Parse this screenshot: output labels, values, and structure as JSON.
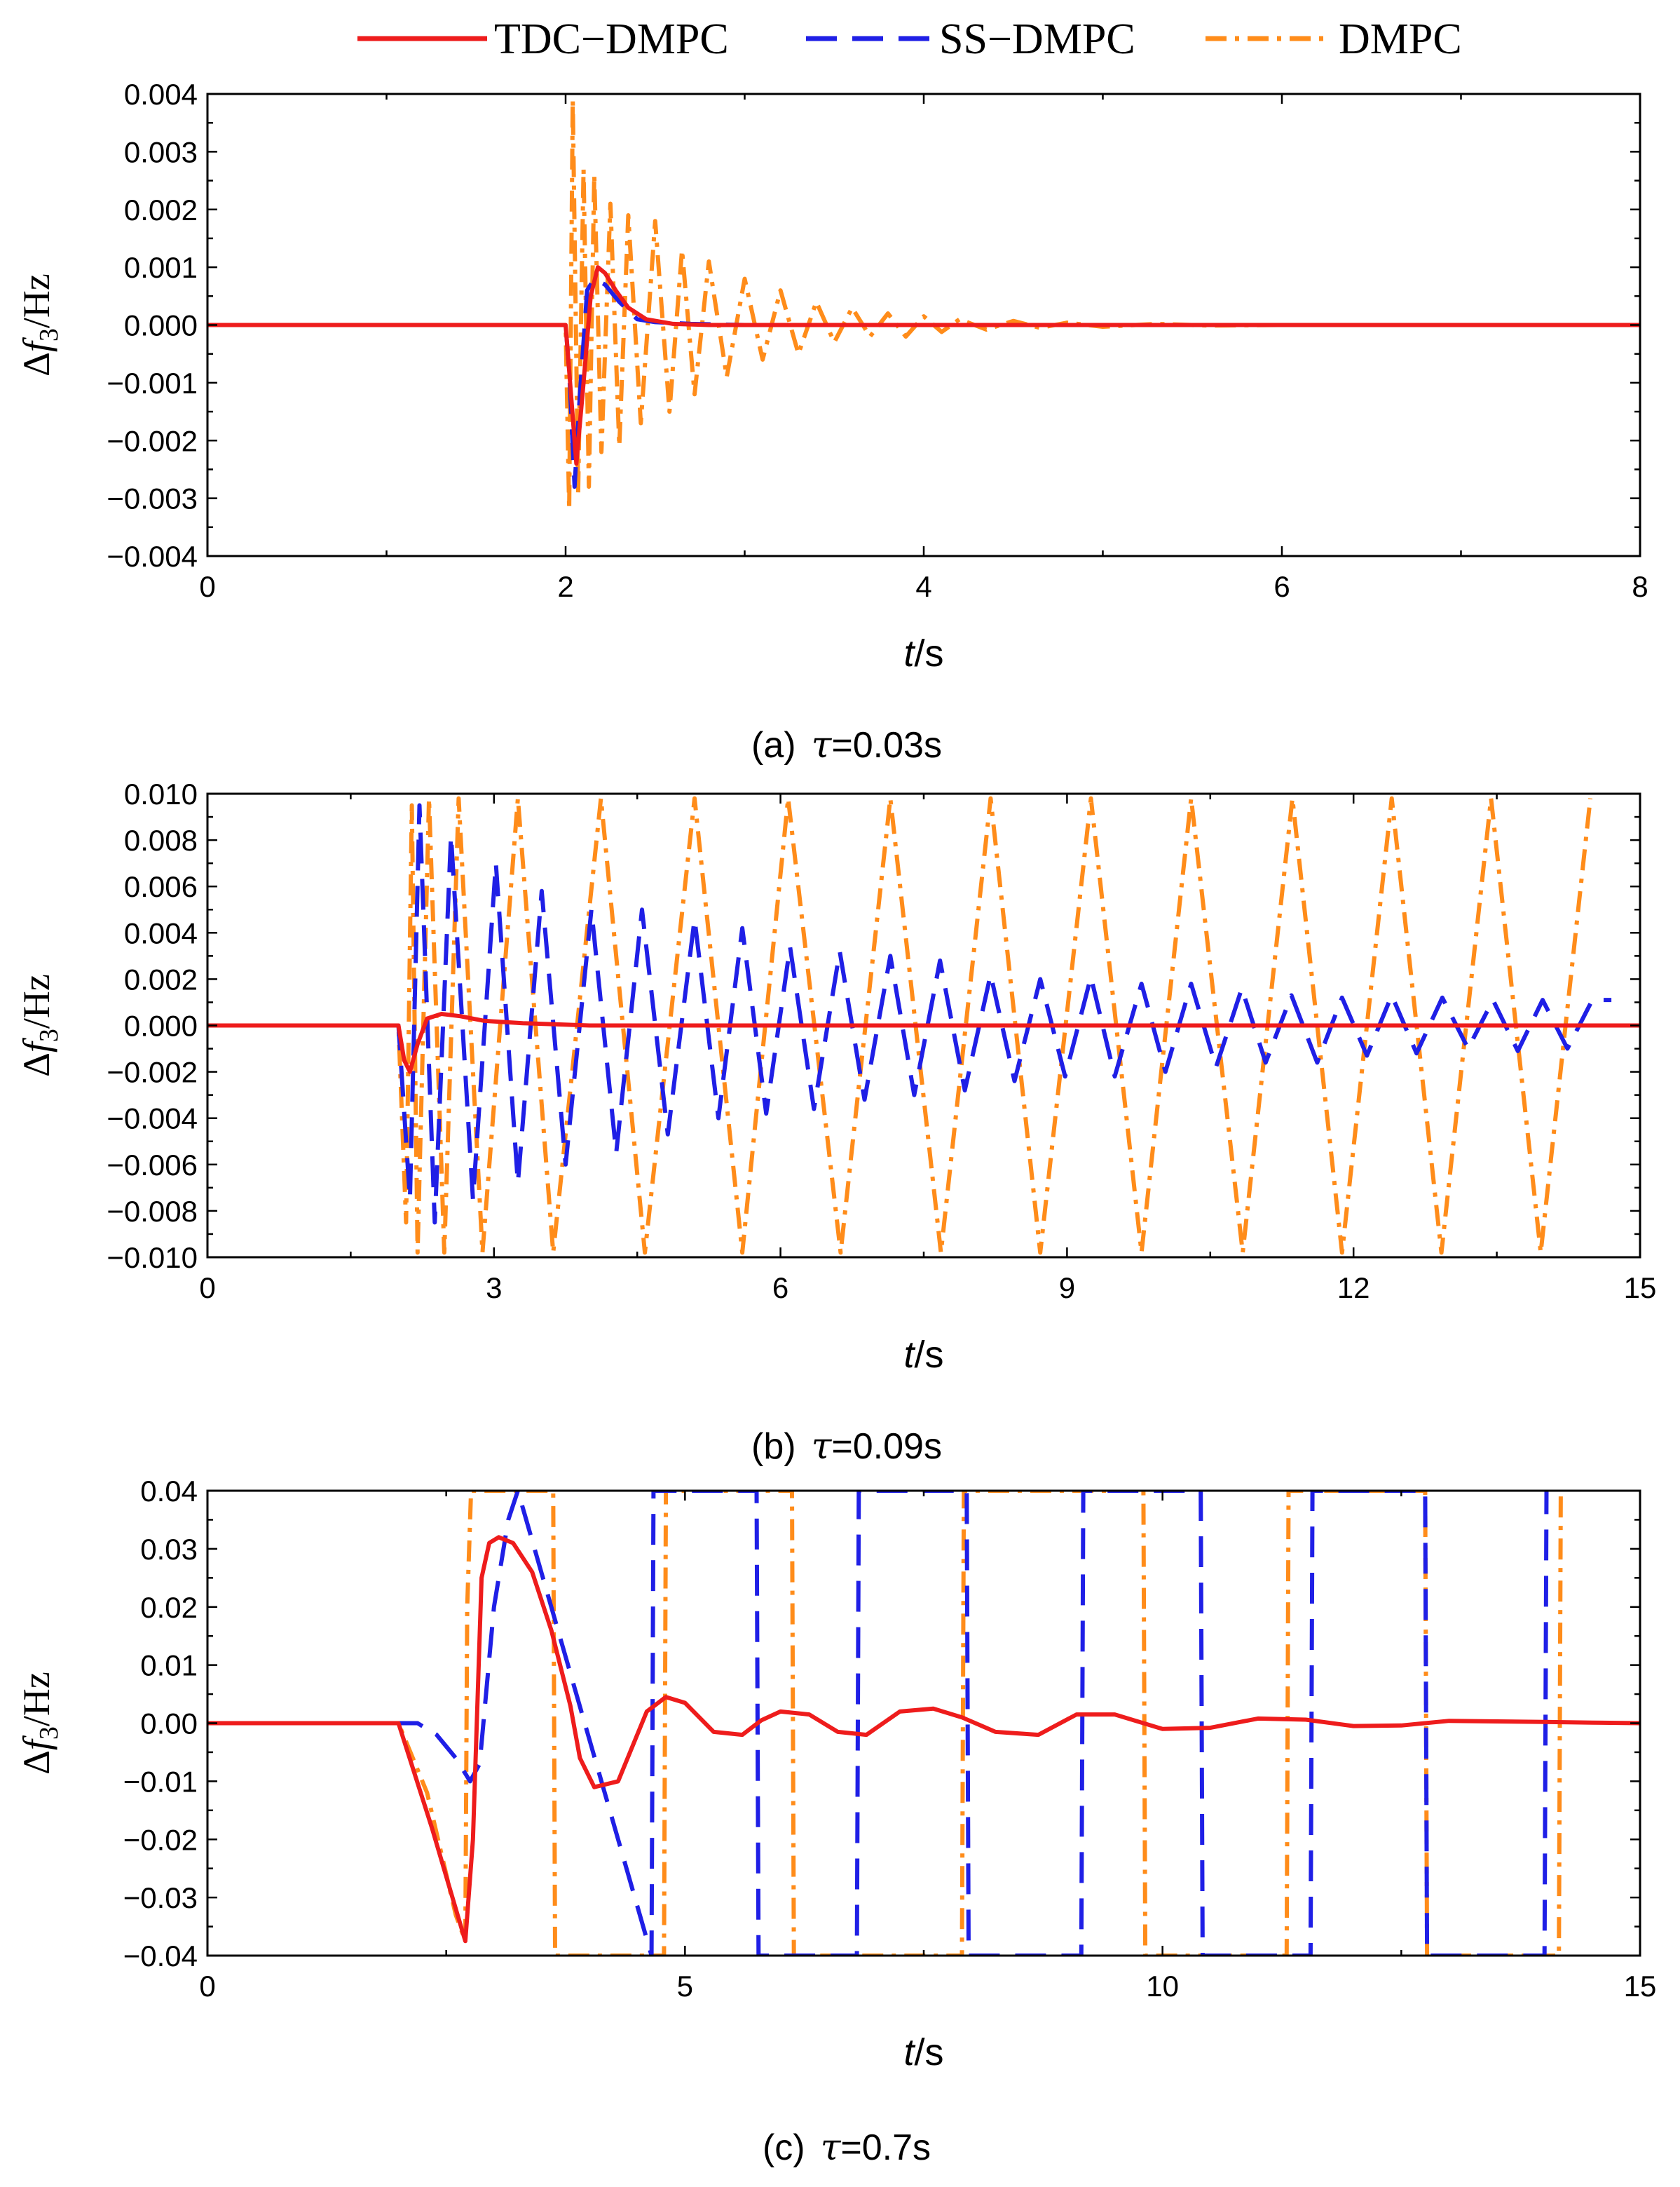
{
  "legend": [
    {
      "label": "TDC−DMPC",
      "color": "#ee1c1c",
      "style": "solid"
    },
    {
      "label": "SS−DMPC",
      "color": "#1f1fe6",
      "style": "dashed"
    },
    {
      "label": "DMPC",
      "color": "#ff8c1a",
      "style": "dashdot"
    }
  ],
  "chart_data": [
    {
      "type": "line",
      "panel": "a",
      "caption": {
        "prefix": "(a)",
        "symbol": "τ",
        "value": "=0.03s"
      },
      "xlabel": {
        "var": "t",
        "unit": "/s"
      },
      "ylabel": {
        "delta": "Δ",
        "var": "f",
        "sub": "3",
        "unit": "/Hz"
      },
      "xlim": [
        0,
        8
      ],
      "ylim": [
        -0.004,
        0.004
      ],
      "xticks": [
        0,
        2,
        4,
        6,
        8
      ],
      "xtick_labels": [
        "0",
        "2",
        "4",
        "6",
        "8"
      ],
      "yticks": [
        -0.004,
        -0.003,
        -0.002,
        -0.001,
        0.0,
        0.001,
        0.002,
        0.003,
        0.004
      ],
      "ytick_labels": [
        "−0.004",
        "−0.003",
        "−0.002",
        "−0.001",
        "0.000",
        "0.001",
        "0.002",
        "0.003",
        "0.004"
      ],
      "series": [
        {
          "name": "DMPC",
          "t": [
            0,
            2.0,
            2.02,
            2.04,
            2.07,
            2.1,
            2.13,
            2.16,
            2.2,
            2.25,
            2.3,
            2.35,
            2.42,
            2.5,
            2.58,
            2.65,
            2.72,
            2.8,
            2.9,
            3.0,
            3.1,
            3.2,
            3.3,
            3.4,
            3.5,
            3.6,
            3.7,
            3.8,
            3.9,
            4.0,
            4.1,
            4.2,
            4.35,
            4.5,
            4.65,
            4.8,
            5.0,
            5.3,
            5.6,
            6.0,
            8.0
          ],
          "values": [
            0,
            0,
            -0.0032,
            0.0039,
            -0.0029,
            0.0027,
            -0.0028,
            0.0026,
            -0.0022,
            0.0021,
            -0.0021,
            0.0019,
            -0.0017,
            0.0018,
            -0.0015,
            0.0013,
            -0.0012,
            0.0011,
            -0.0009,
            0.0008,
            -0.0006,
            0.0006,
            -0.0005,
            0.0004,
            -0.0003,
            0.0003,
            -0.0002,
            0.0002,
            -0.0002,
            0.00015,
            -0.00012,
            0.0001,
            -8e-05,
            7e-05,
            -5e-05,
            4e-05,
            -3e-05,
            2e-05,
            -1e-05,
            0,
            0
          ]
        },
        {
          "name": "SS−DMPC",
          "t": [
            0,
            2.0,
            2.02,
            2.05,
            2.08,
            2.12,
            2.16,
            2.22,
            2.3,
            2.4,
            2.5,
            2.7,
            3.0,
            8.0
          ],
          "values": [
            0,
            0,
            -0.0008,
            -0.0028,
            -0.0012,
            0.0006,
            0.0008,
            0.0007,
            0.0004,
            0.0001,
            5e-05,
            2e-05,
            0,
            0
          ]
        },
        {
          "name": "TDC−DMPC",
          "t": [
            0,
            2.0,
            2.03,
            2.06,
            2.1,
            2.14,
            2.18,
            2.22,
            2.28,
            2.35,
            2.45,
            2.6,
            2.8,
            3.0,
            8.0
          ],
          "values": [
            0,
            0,
            -0.0012,
            -0.0024,
            -0.001,
            0.0005,
            0.001,
            0.0009,
            0.0006,
            0.0003,
            0.0001,
            2e-05,
            0,
            0,
            0
          ]
        }
      ]
    },
    {
      "type": "line",
      "panel": "b",
      "caption": {
        "prefix": "(b)",
        "symbol": "τ",
        "value": "=0.09s"
      },
      "xlabel": {
        "var": "t",
        "unit": "/s"
      },
      "ylabel": {
        "delta": "Δ",
        "var": "f",
        "sub": "3",
        "unit": "/Hz"
      },
      "xlim": [
        0,
        15
      ],
      "ylim": [
        -0.01,
        0.01
      ],
      "xticks": [
        0,
        3,
        6,
        9,
        12,
        15
      ],
      "xtick_labels": [
        "0",
        "3",
        "6",
        "9",
        "12",
        "15"
      ],
      "yticks": [
        -0.01,
        -0.008,
        -0.006,
        -0.004,
        -0.002,
        0.0,
        0.002,
        0.004,
        0.006,
        0.008,
        0.01
      ],
      "ytick_labels": [
        "−0.010",
        "−0.008",
        "−0.006",
        "−0.004",
        "−0.002",
        "0.000",
        "0.002",
        "0.004",
        "0.006",
        "0.008",
        "0.010"
      ],
      "series": [
        {
          "name": "DMPC",
          "t": [
            0,
            2.0,
            2.08,
            2.14,
            2.2,
            2.32,
            2.48,
            2.63,
            2.88,
            3.25,
            3.62,
            4.12,
            4.58,
            5.1,
            5.6,
            6.08,
            6.63,
            7.15,
            7.68,
            8.2,
            8.72,
            9.25,
            9.78,
            10.3,
            10.84,
            11.36,
            11.88,
            12.4,
            12.92,
            13.44,
            13.96,
            14.48
          ],
          "values": [
            0,
            0,
            -0.0085,
            0.0095,
            -0.0098,
            0.0098,
            -0.0098,
            0.0098,
            -0.0098,
            0.0098,
            -0.0098,
            0.0098,
            -0.0098,
            0.0098,
            -0.0098,
            0.0098,
            -0.0098,
            0.0098,
            -0.0098,
            0.0098,
            -0.0098,
            0.0098,
            -0.0098,
            0.0098,
            -0.0098,
            0.0098,
            -0.0098,
            0.0098,
            -0.0098,
            0.0098,
            -0.0098,
            0.0098
          ]
        },
        {
          "name": "SS−DMPC",
          "t": [
            0,
            2.0,
            2.12,
            2.22,
            2.38,
            2.55,
            2.78,
            3.02,
            3.25,
            3.5,
            3.75,
            4.02,
            4.28,
            4.55,
            4.82,
            5.1,
            5.35,
            5.6,
            5.85,
            6.1,
            6.35,
            6.62,
            6.88,
            7.15,
            7.4,
            7.67,
            7.93,
            8.2,
            8.45,
            8.72,
            8.98,
            9.25,
            9.5,
            9.78,
            10.03,
            10.3,
            10.56,
            10.83,
            11.08,
            11.35,
            11.62,
            11.88,
            12.14,
            12.4,
            12.66,
            12.93,
            13.2,
            13.46,
            13.72,
            13.98,
            14.24,
            14.5,
            14.7
          ],
          "values": [
            0,
            0,
            -0.0075,
            0.0095,
            -0.0085,
            0.0082,
            -0.0075,
            0.007,
            -0.0068,
            0.0058,
            -0.006,
            0.005,
            -0.0055,
            0.005,
            -0.0047,
            0.0046,
            -0.004,
            0.0042,
            -0.0038,
            0.0034,
            -0.0036,
            0.0032,
            -0.0032,
            0.003,
            -0.003,
            0.0028,
            -0.0028,
            0.0022,
            -0.0024,
            0.002,
            -0.0022,
            0.0021,
            -0.0022,
            0.0018,
            -0.002,
            0.0018,
            -0.0018,
            0.0016,
            -0.0016,
            0.0013,
            -0.0016,
            0.0012,
            -0.0013,
            0.0013,
            -0.0012,
            0.0012,
            -0.001,
            0.0011,
            -0.0011,
            0.0011,
            -0.001,
            0.0011,
            0.0011
          ]
        },
        {
          "name": "TDC−DMPC",
          "t": [
            0,
            2.0,
            2.06,
            2.12,
            2.2,
            2.3,
            2.45,
            2.65,
            2.9,
            3.3,
            4.0,
            15.0
          ],
          "values": [
            0,
            0,
            -0.0015,
            -0.002,
            -0.0008,
            0.0003,
            0.0005,
            0.0004,
            0.0002,
            0.0001,
            0,
            0
          ]
        }
      ]
    },
    {
      "type": "line",
      "panel": "c",
      "caption": {
        "prefix": "(c)",
        "symbol": "τ",
        "value": "=0.7s"
      },
      "xlabel": {
        "var": "t",
        "unit": "/s"
      },
      "ylabel": {
        "delta": "Δ",
        "var": "f",
        "sub": "3",
        "unit": "/Hz"
      },
      "xlim": [
        0,
        15
      ],
      "ylim": [
        -0.04,
        0.04
      ],
      "xticks": [
        0,
        5,
        10,
        15
      ],
      "xtick_labels": [
        "0",
        "5",
        "10",
        "15"
      ],
      "yticks": [
        -0.04,
        -0.03,
        -0.02,
        -0.01,
        0.0,
        0.01,
        0.02,
        0.03,
        0.04
      ],
      "ytick_labels": [
        "−0.04",
        "−0.03",
        "−0.02",
        "−0.01",
        "0.00",
        "0.01",
        "0.02",
        "0.03",
        "0.04"
      ],
      "series": [
        {
          "name": "DMPC",
          "t": [
            0,
            2.0,
            2.3,
            2.6,
            2.7,
            2.72,
            2.76,
            3.62,
            3.64,
            4.78,
            4.8,
            6.12,
            6.14,
            7.9,
            7.92,
            9.8,
            9.82,
            11.3,
            11.32,
            12.75,
            12.77,
            14.15,
            14.17
          ],
          "values": [
            0,
            0,
            -0.012,
            -0.033,
            -0.0375,
            0.02,
            0.04,
            0.04,
            -0.04,
            -0.04,
            0.04,
            0.04,
            -0.04,
            -0.04,
            0.04,
            0.04,
            -0.04,
            -0.04,
            0.04,
            0.04,
            -0.04,
            -0.04,
            0.04
          ]
        },
        {
          "name": "SS−DMPC",
          "t": [
            0,
            2.2,
            2.4,
            2.6,
            2.75,
            2.85,
            3.0,
            3.15,
            3.25,
            4.65,
            4.67,
            5.75,
            5.77,
            6.8,
            6.82,
            7.95,
            7.97,
            9.15,
            9.17,
            10.4,
            10.42,
            11.55,
            11.57,
            12.75,
            12.77,
            14.0,
            14.02
          ],
          "values": [
            0,
            0,
            -0.002,
            -0.006,
            -0.01,
            -0.007,
            0.02,
            0.035,
            0.04,
            -0.04,
            0.04,
            0.04,
            -0.04,
            -0.04,
            0.04,
            0.04,
            -0.04,
            -0.04,
            0.04,
            0.04,
            -0.04,
            -0.04,
            0.04,
            0.04,
            -0.04,
            -0.04,
            0.04
          ]
        },
        {
          "name": "TDC−DMPC",
          "t": [
            0,
            2.0,
            2.35,
            2.7,
            2.78,
            2.87,
            2.95,
            3.05,
            3.2,
            3.4,
            3.6,
            3.8,
            3.9,
            4.05,
            4.3,
            4.6,
            4.8,
            5.0,
            5.3,
            5.6,
            5.8,
            6.0,
            6.3,
            6.6,
            6.9,
            7.25,
            7.6,
            7.9,
            8.25,
            8.7,
            9.1,
            9.5,
            10.0,
            10.5,
            11.0,
            11.5,
            12.0,
            12.5,
            13.0,
            13.5,
            14.0,
            14.5,
            15.0
          ],
          "values": [
            0,
            0,
            -0.018,
            -0.0375,
            -0.02,
            0.025,
            0.031,
            0.032,
            0.031,
            0.026,
            0.016,
            0.003,
            -0.006,
            -0.011,
            -0.01,
            0.002,
            0.0045,
            0.0035,
            -0.0015,
            -0.002,
            0.0005,
            0.002,
            0.0015,
            -0.0015,
            -0.002,
            0.002,
            0.0025,
            0.001,
            -0.0015,
            -0.002,
            0.0015,
            0.0015,
            -0.001,
            -0.0008,
            0.0008,
            0.0006,
            -0.0005,
            -0.0004,
            0.0004,
            0.0003,
            0.0002,
            0.0001,
            0
          ]
        }
      ]
    }
  ]
}
